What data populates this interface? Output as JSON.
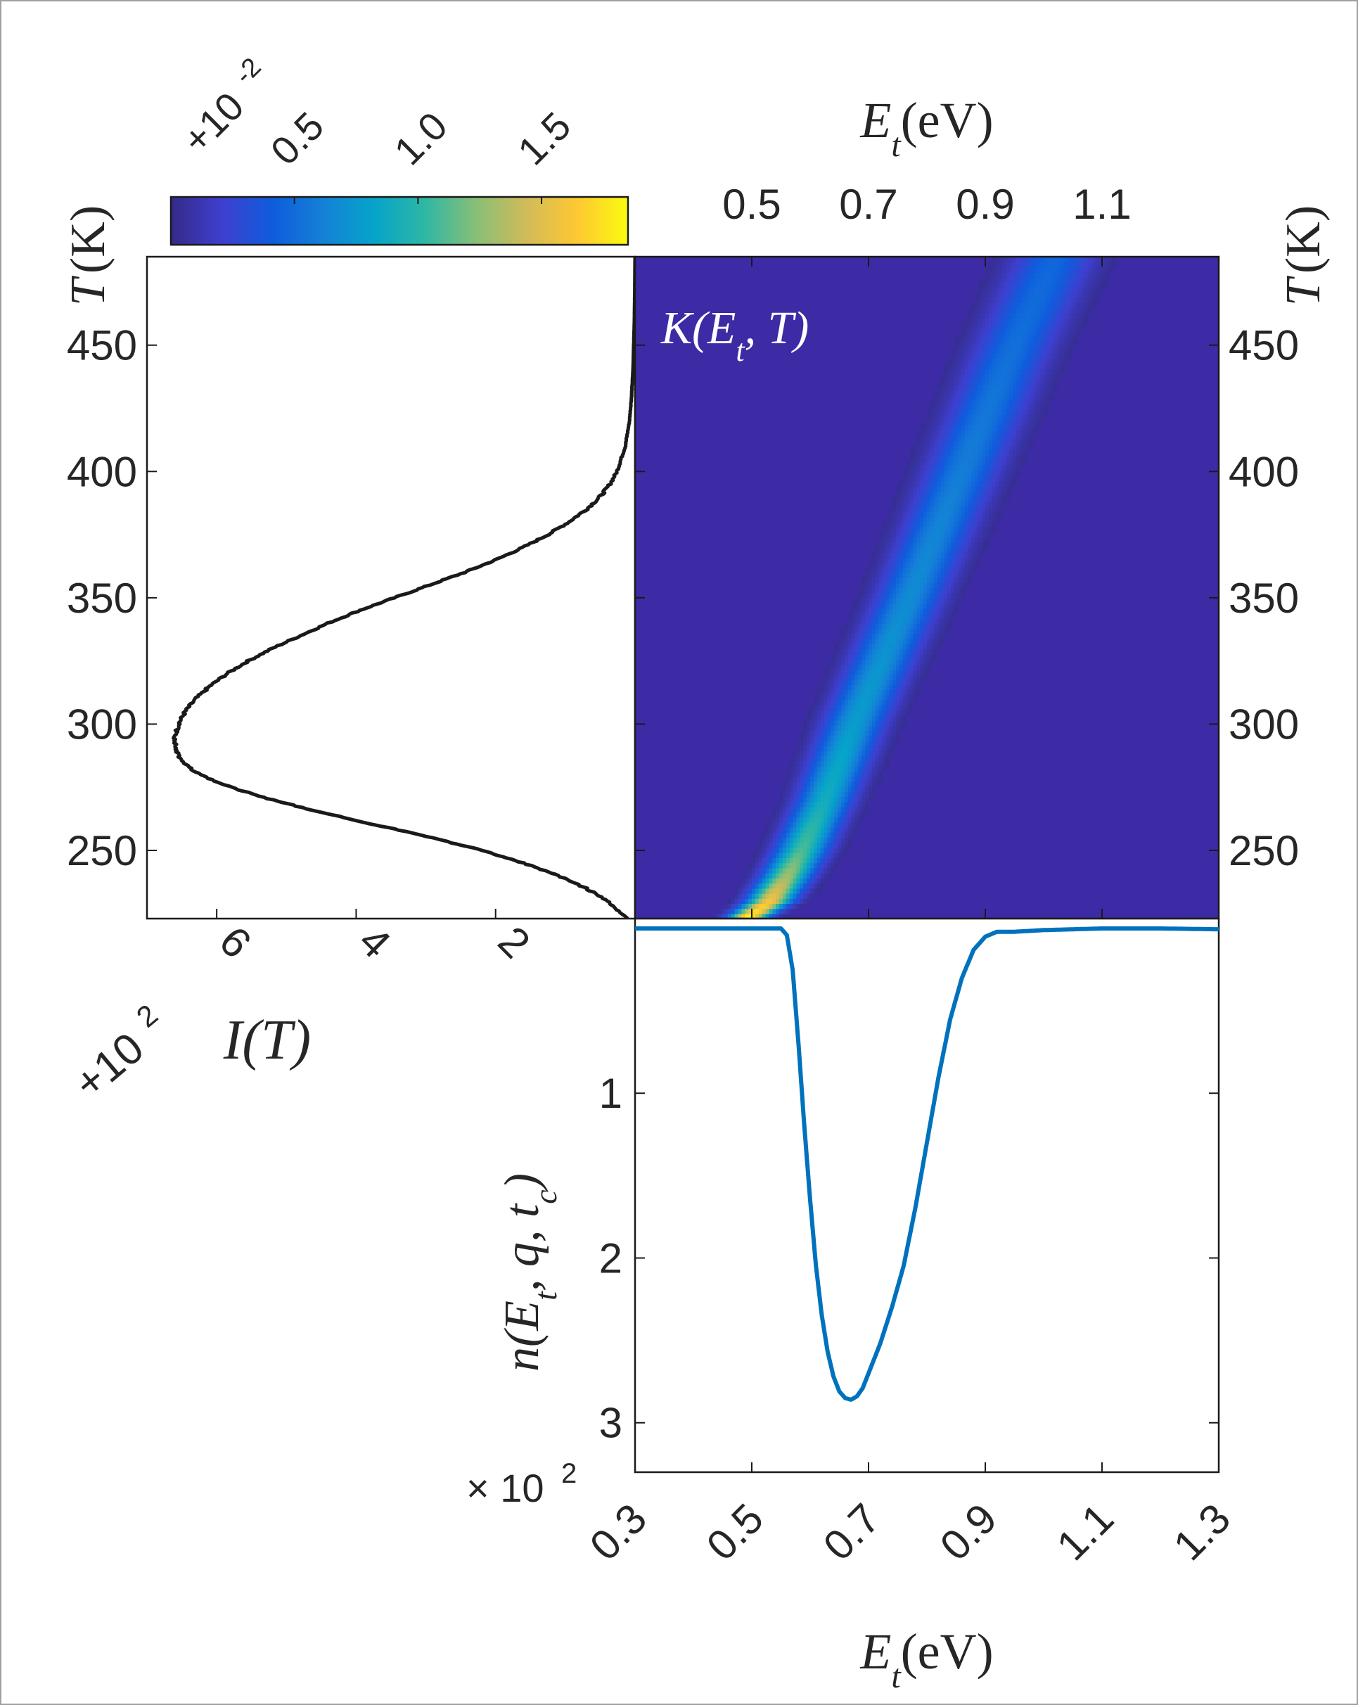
{
  "chart_data": [
    {
      "id": "colorbar",
      "type": "colorbar",
      "ticks": [
        "0.5",
        "1.0",
        "1.5"
      ],
      "tick_values": [
        0.5,
        1.0,
        1.5
      ],
      "range": [
        0.0,
        1.85
      ],
      "multiplier": "+10",
      "multiplier_exp": "-2",
      "colormap": "parula",
      "colors": [
        "#352A87",
        "#3E3FCF",
        "#0F5CDD",
        "#1481D6",
        "#06A4CA",
        "#2EB7A4",
        "#87BF77",
        "#D1BB59",
        "#FEC832",
        "#F9FB0E"
      ]
    },
    {
      "id": "intensity",
      "type": "line",
      "title": "",
      "xlabel": "I(T)",
      "ylabel": "T(K)",
      "x_direction": "reversed",
      "xlim": [
        0,
        7.0
      ],
      "x_ticks": [
        "6",
        "4",
        "2"
      ],
      "x_tick_values": [
        6,
        4,
        2
      ],
      "x_multiplier": "+10",
      "x_multiplier_exp": "2",
      "ylim": [
        223,
        485
      ],
      "y_ticks": [
        "250",
        "300",
        "350",
        "400",
        "450"
      ],
      "y_tick_values": [
        250,
        300,
        350,
        400,
        450
      ],
      "series": [
        {
          "name": "I(T)",
          "color": "#1a1a1a",
          "T": [
            223,
            225,
            230,
            235,
            240,
            245,
            250,
            255,
            260,
            265,
            270,
            275,
            280,
            285,
            290,
            295,
            300,
            305,
            310,
            315,
            320,
            325,
            330,
            335,
            340,
            345,
            350,
            355,
            360,
            365,
            370,
            375,
            380,
            385,
            390,
            395,
            400,
            410,
            420,
            430,
            440,
            450,
            460,
            470,
            485
          ],
          "I": [
            0.1,
            0.2,
            0.4,
            0.7,
            1.1,
            1.6,
            2.2,
            2.9,
            3.7,
            4.5,
            5.2,
            5.8,
            6.25,
            6.5,
            6.6,
            6.6,
            6.55,
            6.45,
            6.3,
            6.1,
            5.85,
            5.55,
            5.2,
            4.8,
            4.4,
            3.95,
            3.45,
            2.95,
            2.45,
            2.0,
            1.6,
            1.25,
            0.95,
            0.7,
            0.5,
            0.36,
            0.26,
            0.14,
            0.08,
            0.05,
            0.03,
            0.02,
            0.01,
            0.005,
            0.0
          ]
        }
      ]
    },
    {
      "id": "kernel",
      "type": "heatmap",
      "annotation": "K(E_t, T)",
      "xlabel": "E_t(eV)",
      "x_label_position": "top",
      "ylabel": "T(K)",
      "y_label_position": "right",
      "xlim": [
        0.3,
        1.3
      ],
      "x_ticks": [
        "0.5",
        "0.7",
        "0.9",
        "1.1"
      ],
      "x_tick_values": [
        0.5,
        0.7,
        0.9,
        1.1
      ],
      "ylim": [
        223,
        485
      ],
      "y_ticks": [
        "250",
        "300",
        "350",
        "400",
        "450"
      ],
      "y_tick_values": [
        250,
        300,
        350,
        400,
        450
      ],
      "ridge": {
        "T": [
          223,
          230,
          240,
          250,
          270,
          300,
          350,
          400,
          450,
          485
        ],
        "E": [
          0.49,
          0.53,
          0.56,
          0.585,
          0.625,
          0.675,
          0.77,
          0.86,
          0.95,
          1.02
        ],
        "peak_value": [
          1.85,
          1.6,
          1.3,
          1.1,
          0.9,
          0.78,
          0.68,
          0.6,
          0.52,
          0.47
        ],
        "width_eV": [
          0.022,
          0.026,
          0.028,
          0.03,
          0.032,
          0.035,
          0.038,
          0.042,
          0.045,
          0.048
        ]
      }
    },
    {
      "id": "distribution",
      "type": "line",
      "xlabel": "E_t(eV)",
      "ylabel": "n(E_t, q, t_c)",
      "xlim": [
        0.3,
        1.3
      ],
      "x_ticks": [
        "0.3",
        "0.5",
        "0.7",
        "0.9",
        "1.1",
        "1.3"
      ],
      "x_tick_values": [
        0.3,
        0.5,
        0.7,
        0.9,
        1.1,
        1.3
      ],
      "y_direction": "reversed",
      "ylim": [
        0,
        3.3
      ],
      "y_ticks": [
        "1",
        "2",
        "3"
      ],
      "y_tick_values": [
        1,
        2,
        3
      ],
      "y_multiplier": "× 10",
      "y_multiplier_exp": "2",
      "series": [
        {
          "name": "n(E_t, q, t_c)",
          "color": "#0072BD",
          "E": [
            0.3,
            0.5,
            0.55,
            0.56,
            0.57,
            0.58,
            0.59,
            0.6,
            0.61,
            0.62,
            0.63,
            0.64,
            0.65,
            0.66,
            0.67,
            0.68,
            0.69,
            0.7,
            0.72,
            0.74,
            0.76,
            0.78,
            0.8,
            0.82,
            0.84,
            0.86,
            0.88,
            0.9,
            0.92,
            0.95,
            1.0,
            1.1,
            1.2,
            1.3
          ],
          "n": [
            0.0,
            0.0,
            0.0,
            0.04,
            0.25,
            0.7,
            1.2,
            1.65,
            2.05,
            2.35,
            2.57,
            2.72,
            2.81,
            2.85,
            2.86,
            2.84,
            2.79,
            2.7,
            2.52,
            2.3,
            2.05,
            1.7,
            1.3,
            0.9,
            0.55,
            0.3,
            0.13,
            0.05,
            0.02,
            0.02,
            0.01,
            0.0,
            0.0,
            0.005
          ]
        }
      ]
    }
  ]
}
